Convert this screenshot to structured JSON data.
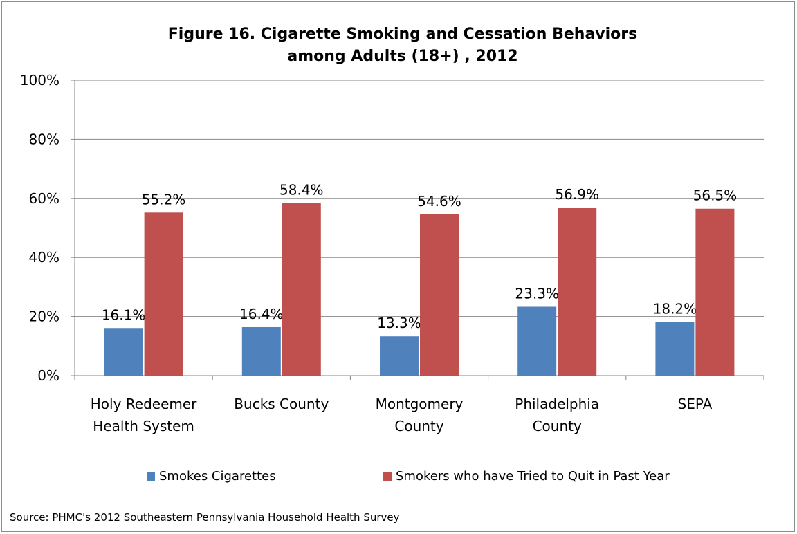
{
  "title_line1": "Figure 16. Cigarette Smoking and Cessation Behaviors",
  "title_line2": "among Adults (18+) , 2012",
  "source": "Source: PHMC's  2012 Southeastern Pennsylvania Household Health Survey",
  "colors": {
    "series1": "#4f81bd",
    "series2": "#c0504d",
    "grid": "#868686",
    "axis": "#868686"
  },
  "chart_data": {
    "type": "bar",
    "title": "Figure 16. Cigarette Smoking and Cessation Behaviors among Adults (18+) , 2012",
    "categories": [
      [
        "Holy Redeemer",
        "Health System"
      ],
      [
        "Bucks County"
      ],
      [
        "Montgomery",
        "County"
      ],
      [
        "Philadelphia",
        "County"
      ],
      [
        "SEPA"
      ]
    ],
    "series": [
      {
        "name": "Smokes Cigarettes",
        "values": [
          16.1,
          16.4,
          13.3,
          23.3,
          18.2
        ],
        "labels": [
          "16.1%",
          "16.4%",
          "13.3%",
          "23.3%",
          "18.2%"
        ]
      },
      {
        "name": "Smokers who have Tried to Quit in Past Year",
        "values": [
          55.2,
          58.4,
          54.6,
          56.9,
          56.5
        ],
        "labels": [
          "55.2%",
          "58.4%",
          "54.6%",
          "56.9%",
          "56.5%"
        ]
      }
    ],
    "ylim": [
      0,
      100
    ],
    "yticks": [
      "0%",
      "20%",
      "40%",
      "60%",
      "80%",
      "100%"
    ],
    "grid": true,
    "legend_position": "bottom"
  }
}
